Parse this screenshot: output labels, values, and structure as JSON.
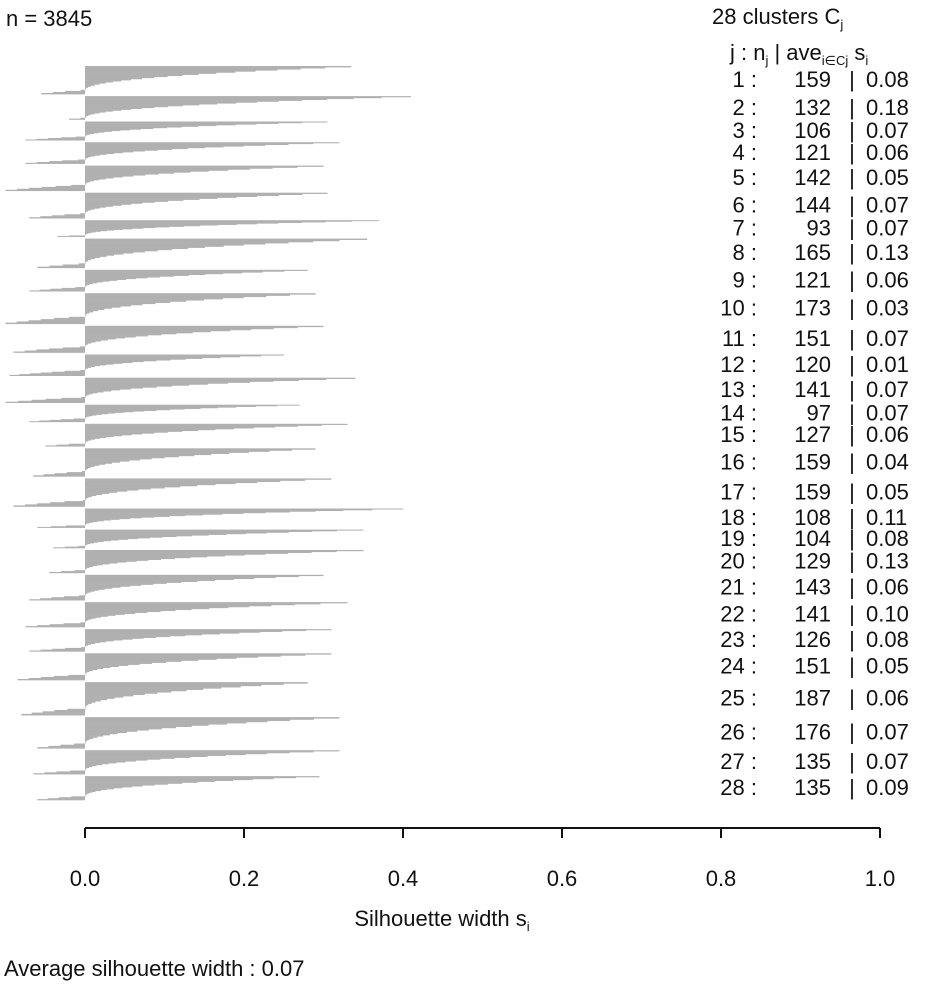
{
  "header": {
    "n_label": "n = 3845",
    "clusters_label": "28  clusters  C",
    "clusters_sub": "j",
    "col_j": "j :  n",
    "col_n_sub": "j",
    "col_ave": " | ave",
    "col_ave_sub": "i∈Cj",
    "col_s": "  s",
    "col_s_sub": "i"
  },
  "footer": {
    "avg_label": "Average silhouette width :  0.07"
  },
  "chart_data": {
    "type": "bar",
    "orientation": "horizontal",
    "title": "",
    "xlabel": "Silhouette width s",
    "xlabel_sub": "i",
    "xlim": [
      0,
      1.0
    ],
    "xticks": [
      "0.0",
      "0.2",
      "0.4",
      "0.6",
      "0.8",
      "1.0"
    ],
    "bar_color": "#b0b0b0",
    "clusters": [
      {
        "j": 1,
        "n": 159,
        "ave": "0.08",
        "max": 0.335,
        "min": -0.055
      },
      {
        "j": 2,
        "n": 132,
        "ave": "0.18",
        "max": 0.41,
        "min": -0.02
      },
      {
        "j": 3,
        "n": 106,
        "ave": "0.07",
        "max": 0.305,
        "min": -0.075
      },
      {
        "j": 4,
        "n": 121,
        "ave": "0.06",
        "max": 0.32,
        "min": -0.075
      },
      {
        "j": 5,
        "n": 142,
        "ave": "0.05",
        "max": 0.3,
        "min": -0.1
      },
      {
        "j": 6,
        "n": 144,
        "ave": "0.07",
        "max": 0.305,
        "min": -0.07
      },
      {
        "j": 7,
        "n": 93,
        "ave": "0.07",
        "max": 0.37,
        "min": -0.035
      },
      {
        "j": 8,
        "n": 165,
        "ave": "0.13",
        "max": 0.355,
        "min": -0.06
      },
      {
        "j": 9,
        "n": 121,
        "ave": "0.06",
        "max": 0.28,
        "min": -0.07
      },
      {
        "j": 10,
        "n": 173,
        "ave": "0.03",
        "max": 0.29,
        "min": -0.1
      },
      {
        "j": 11,
        "n": 151,
        "ave": "0.07",
        "max": 0.3,
        "min": -0.09
      },
      {
        "j": 12,
        "n": 120,
        "ave": "0.01",
        "max": 0.25,
        "min": -0.095
      },
      {
        "j": 13,
        "n": 141,
        "ave": "0.07",
        "max": 0.34,
        "min": -0.1
      },
      {
        "j": 14,
        "n": 97,
        "ave": "0.07",
        "max": 0.27,
        "min": -0.07
      },
      {
        "j": 15,
        "n": 127,
        "ave": "0.06",
        "max": 0.33,
        "min": -0.05
      },
      {
        "j": 16,
        "n": 159,
        "ave": "0.04",
        "max": 0.29,
        "min": -0.065
      },
      {
        "j": 17,
        "n": 159,
        "ave": "0.05",
        "max": 0.31,
        "min": -0.09
      },
      {
        "j": 18,
        "n": 108,
        "ave": "0.11",
        "max": 0.4,
        "min": -0.06
      },
      {
        "j": 19,
        "n": 104,
        "ave": "0.08",
        "max": 0.35,
        "min": -0.04
      },
      {
        "j": 20,
        "n": 129,
        "ave": "0.13",
        "max": 0.35,
        "min": -0.045
      },
      {
        "j": 21,
        "n": 143,
        "ave": "0.06",
        "max": 0.3,
        "min": -0.07
      },
      {
        "j": 22,
        "n": 141,
        "ave": "0.10",
        "max": 0.33,
        "min": -0.075
      },
      {
        "j": 23,
        "n": 126,
        "ave": "0.08",
        "max": 0.31,
        "min": -0.07
      },
      {
        "j": 24,
        "n": 151,
        "ave": "0.05",
        "max": 0.31,
        "min": -0.085
      },
      {
        "j": 25,
        "n": 187,
        "ave": "0.06",
        "max": 0.28,
        "min": -0.08
      },
      {
        "j": 26,
        "n": 176,
        "ave": "0.07",
        "max": 0.32,
        "min": -0.06
      },
      {
        "j": 27,
        "n": 135,
        "ave": "0.07",
        "max": 0.32,
        "min": -0.065
      },
      {
        "j": 28,
        "n": 135,
        "ave": "0.09",
        "max": 0.295,
        "min": -0.06
      }
    ]
  }
}
